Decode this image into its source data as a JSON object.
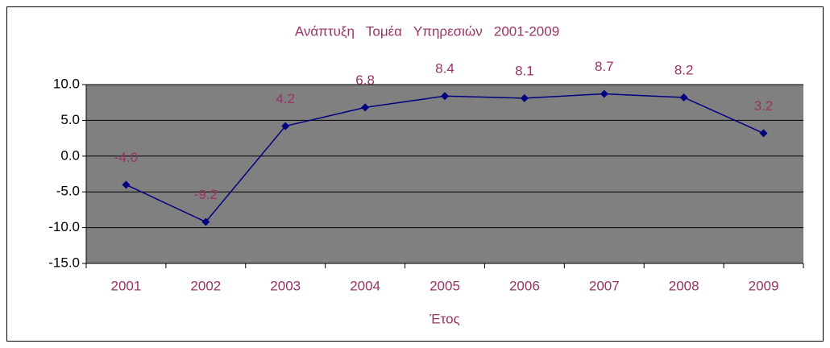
{
  "chart_data": {
    "type": "line",
    "title": "Ανάπτυξη   Τομέα   Υπηρεσιών   2001-2009",
    "x_label": "Έτος",
    "categories": [
      "2001",
      "2002",
      "2003",
      "2004",
      "2005",
      "2006",
      "2007",
      "2008",
      "2009"
    ],
    "series": [
      {
        "color": "#000080",
        "values": [
          -4.0,
          -9.2,
          4.2,
          6.8,
          8.4,
          8.1,
          8.7,
          8.2,
          3.2
        ],
        "value_labels": [
          "-4.0",
          "-9.2",
          "4.2",
          "6.8",
          "8.4",
          "8.1",
          "8.7",
          "8.2",
          "3.2"
        ]
      }
    ],
    "ylim": [
      -15,
      10
    ],
    "yticks": [
      {
        "value": -15,
        "label": "-15.0"
      },
      {
        "value": -10,
        "label": "-10.0"
      },
      {
        "value": -5,
        "label": "-5.0"
      },
      {
        "value": 0,
        "label": "0.0"
      },
      {
        "value": 5,
        "label": "5.0"
      },
      {
        "value": 10,
        "label": "10.0"
      }
    ],
    "grid": true,
    "plot_background": "#808080"
  }
}
